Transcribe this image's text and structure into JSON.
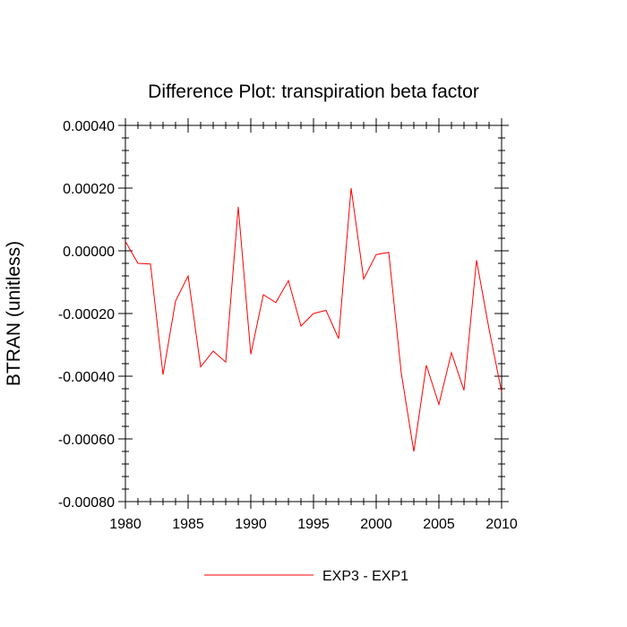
{
  "chart_data": {
    "type": "line",
    "title": "Difference Plot: transpiration beta factor",
    "xlabel": "",
    "ylabel": "BTRAN  (unitless)",
    "xlim": [
      1980,
      2010
    ],
    "ylim": [
      -0.0008,
      0.0004
    ],
    "x_ticks": [
      "1980",
      "1985",
      "1990",
      "1995",
      "2000",
      "2005",
      "2010"
    ],
    "y_ticks": [
      "0.00040",
      "0.00020",
      "0.00000",
      "-0.00020",
      "-0.00040",
      "-0.00060",
      "-0.00080"
    ],
    "grid": false,
    "legend_position": "bottom-center",
    "series": [
      {
        "name": "EXP3 - EXP1",
        "color": "#ff0000",
        "x": [
          1980,
          1981,
          1982,
          1983,
          1984,
          1985,
          1986,
          1987,
          1988,
          1989,
          1990,
          1991,
          1992,
          1993,
          1994,
          1995,
          1996,
          1997,
          1998,
          1999,
          2000,
          2001,
          2002,
          2003,
          2004,
          2005,
          2006,
          2007,
          2008,
          2009,
          2010
        ],
        "y": [
          3e-05,
          -4e-05,
          -4.2e-05,
          -0.000395,
          -0.00016,
          -8e-05,
          -0.00037,
          -0.00032,
          -0.000355,
          0.00014,
          -0.00033,
          -0.00014,
          -0.000165,
          -9.5e-05,
          -0.00024,
          -0.0002,
          -0.00019,
          -0.00028,
          0.0002,
          -9e-05,
          -1.2e-05,
          -5e-06,
          -0.00039,
          -0.00064,
          -0.000365,
          -0.00049,
          -0.000325,
          -0.000445,
          -3e-05,
          -0.00025,
          -0.00045
        ]
      }
    ]
  }
}
